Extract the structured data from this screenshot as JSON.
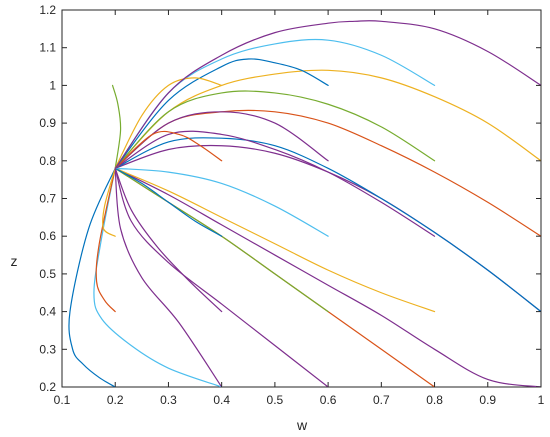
{
  "chart_data": {
    "type": "line",
    "xlabel": "w",
    "ylabel": "z",
    "xlim": [
      0.1,
      1.0
    ],
    "ylim": [
      0.2,
      1.2
    ],
    "xticks": [
      "0.1",
      "0.2",
      "0.3",
      "0.4",
      "0.5",
      "0.6",
      "0.7",
      "0.8",
      "0.9",
      "1"
    ],
    "yticks": [
      "0.2",
      "0.3",
      "0.4",
      "0.5",
      "0.6",
      "0.7",
      "0.8",
      "0.9",
      "1",
      "1.1",
      "1.2"
    ],
    "grid": false,
    "legend": "none",
    "series": [
      {
        "color": "#0072BD",
        "x": [
          0.2,
          0.15,
          0.115,
          0.12,
          0.14,
          0.17,
          0.2
        ],
        "y": [
          0.78,
          0.62,
          0.4,
          0.3,
          0.26,
          0.225,
          0.2
        ]
      },
      {
        "color": "#4DBEEE",
        "x": [
          0.2,
          0.175,
          0.16,
          0.175,
          0.23,
          0.3,
          0.4
        ],
        "y": [
          0.78,
          0.6,
          0.45,
          0.38,
          0.31,
          0.25,
          0.2
        ]
      },
      {
        "color": "#D95319",
        "x": [
          0.2,
          0.17,
          0.165,
          0.18,
          0.2
        ],
        "y": [
          0.78,
          0.58,
          0.48,
          0.43,
          0.4
        ]
      },
      {
        "color": "#EDB120",
        "x": [
          0.2,
          0.18,
          0.178,
          0.2
        ],
        "y": [
          0.78,
          0.68,
          0.62,
          0.6
        ]
      },
      {
        "color": "#77AC30",
        "x": [
          0.2,
          0.21,
          0.205,
          0.195
        ],
        "y": [
          0.78,
          0.88,
          0.95,
          1.0
        ]
      },
      {
        "color": "#7E2F8E",
        "x": [
          0.2,
          0.21,
          0.25,
          0.32,
          0.4
        ],
        "y": [
          0.78,
          0.62,
          0.49,
          0.37,
          0.2
        ]
      },
      {
        "color": "#7E2F8E",
        "x": [
          0.2,
          0.23,
          0.3,
          0.4,
          0.5,
          0.6
        ],
        "y": [
          0.78,
          0.64,
          0.53,
          0.42,
          0.31,
          0.2
        ]
      },
      {
        "color": "#D95319",
        "x": [
          0.2,
          0.3,
          0.4,
          0.5,
          0.6,
          0.7,
          0.8
        ],
        "y": [
          0.78,
          0.69,
          0.6,
          0.5,
          0.4,
          0.3,
          0.2
        ]
      },
      {
        "color": "#7E2F8E",
        "x": [
          0.2,
          0.3,
          0.4,
          0.5,
          0.6,
          0.7,
          0.8,
          0.9,
          1.0
        ],
        "y": [
          0.78,
          0.71,
          0.63,
          0.55,
          0.47,
          0.39,
          0.3,
          0.22,
          0.2
        ]
      },
      {
        "color": "#EDB120",
        "x": [
          0.2,
          0.3,
          0.4,
          0.5,
          0.6,
          0.7,
          0.8
        ],
        "y": [
          0.78,
          0.72,
          0.65,
          0.58,
          0.51,
          0.45,
          0.4
        ]
      },
      {
        "color": "#77AC30",
        "x": [
          0.2,
          0.3,
          0.4,
          0.5,
          0.6
        ],
        "y": [
          0.78,
          0.69,
          0.6,
          0.5,
          0.4
        ]
      },
      {
        "color": "#7E2F8E",
        "x": [
          0.2,
          0.23,
          0.28,
          0.34,
          0.4
        ],
        "y": [
          0.78,
          0.67,
          0.57,
          0.48,
          0.4
        ]
      },
      {
        "color": "#0072BD",
        "x": [
          0.2,
          0.25,
          0.3,
          0.35,
          0.4
        ],
        "y": [
          0.78,
          0.74,
          0.69,
          0.64,
          0.6
        ]
      },
      {
        "color": "#4DBEEE",
        "x": [
          0.2,
          0.3,
          0.4,
          0.5,
          0.6
        ],
        "y": [
          0.78,
          0.77,
          0.74,
          0.68,
          0.6
        ]
      },
      {
        "color": "#7E2F8E",
        "x": [
          0.2,
          0.3,
          0.4,
          0.5,
          0.6,
          0.7,
          0.8,
          0.9,
          1.0
        ],
        "y": [
          0.78,
          0.83,
          0.84,
          0.82,
          0.77,
          0.7,
          0.61,
          0.51,
          0.4
        ]
      },
      {
        "color": "#0072BD",
        "x": [
          0.2,
          0.3,
          0.4,
          0.5,
          0.6,
          0.7,
          0.8,
          0.9,
          1.0
        ],
        "y": [
          0.78,
          0.85,
          0.86,
          0.84,
          0.78,
          0.7,
          0.61,
          0.51,
          0.4
        ]
      },
      {
        "color": "#7E2F8E",
        "x": [
          0.2,
          0.3,
          0.4,
          0.5,
          0.6,
          0.7,
          0.8
        ],
        "y": [
          0.78,
          0.87,
          0.87,
          0.83,
          0.77,
          0.69,
          0.6
        ]
      },
      {
        "color": "#D95319",
        "x": [
          0.2,
          0.3,
          0.4,
          0.5,
          0.6,
          0.7,
          0.8,
          0.9,
          1.0
        ],
        "y": [
          0.78,
          0.9,
          0.93,
          0.93,
          0.9,
          0.84,
          0.77,
          0.69,
          0.6
        ]
      },
      {
        "color": "#EDB120",
        "x": [
          0.2,
          0.3,
          0.4,
          0.5,
          0.6,
          0.7,
          0.8,
          0.9,
          1.0
        ],
        "y": [
          0.78,
          0.93,
          1.0,
          1.03,
          1.04,
          1.02,
          0.97,
          0.9,
          0.8
        ]
      },
      {
        "color": "#77AC30",
        "x": [
          0.2,
          0.3,
          0.4,
          0.5,
          0.6,
          0.7,
          0.8
        ],
        "y": [
          0.78,
          0.93,
          0.98,
          0.98,
          0.95,
          0.89,
          0.8
        ]
      },
      {
        "color": "#7E2F8E",
        "x": [
          0.2,
          0.3,
          0.4,
          0.5,
          0.6
        ],
        "y": [
          0.78,
          0.9,
          0.93,
          0.9,
          0.8
        ]
      },
      {
        "color": "#D95319",
        "x": [
          0.2,
          0.27,
          0.32,
          0.36,
          0.4
        ],
        "y": [
          0.78,
          0.87,
          0.87,
          0.84,
          0.8
        ]
      },
      {
        "color": "#4DBEEE",
        "x": [
          0.2,
          0.3,
          0.4,
          0.5,
          0.6,
          0.7,
          0.8
        ],
        "y": [
          0.78,
          0.98,
          1.07,
          1.11,
          1.12,
          1.08,
          1.0
        ]
      },
      {
        "color": "#0072BD",
        "x": [
          0.2,
          0.3,
          0.4,
          0.45,
          0.5,
          0.55,
          0.6
        ],
        "y": [
          0.78,
          0.96,
          1.05,
          1.07,
          1.06,
          1.04,
          1.0
        ]
      },
      {
        "color": "#EDB120",
        "x": [
          0.2,
          0.25,
          0.3,
          0.35,
          0.4
        ],
        "y": [
          0.78,
          0.92,
          1.0,
          1.02,
          1.0
        ]
      },
      {
        "color": "#7E2F8E",
        "x": [
          0.2,
          0.3,
          0.4,
          0.5,
          0.6,
          0.65,
          0.7,
          0.8,
          0.9,
          1.0
        ],
        "y": [
          0.78,
          0.98,
          1.08,
          1.14,
          1.165,
          1.17,
          1.17,
          1.15,
          1.09,
          1.0
        ]
      }
    ]
  }
}
